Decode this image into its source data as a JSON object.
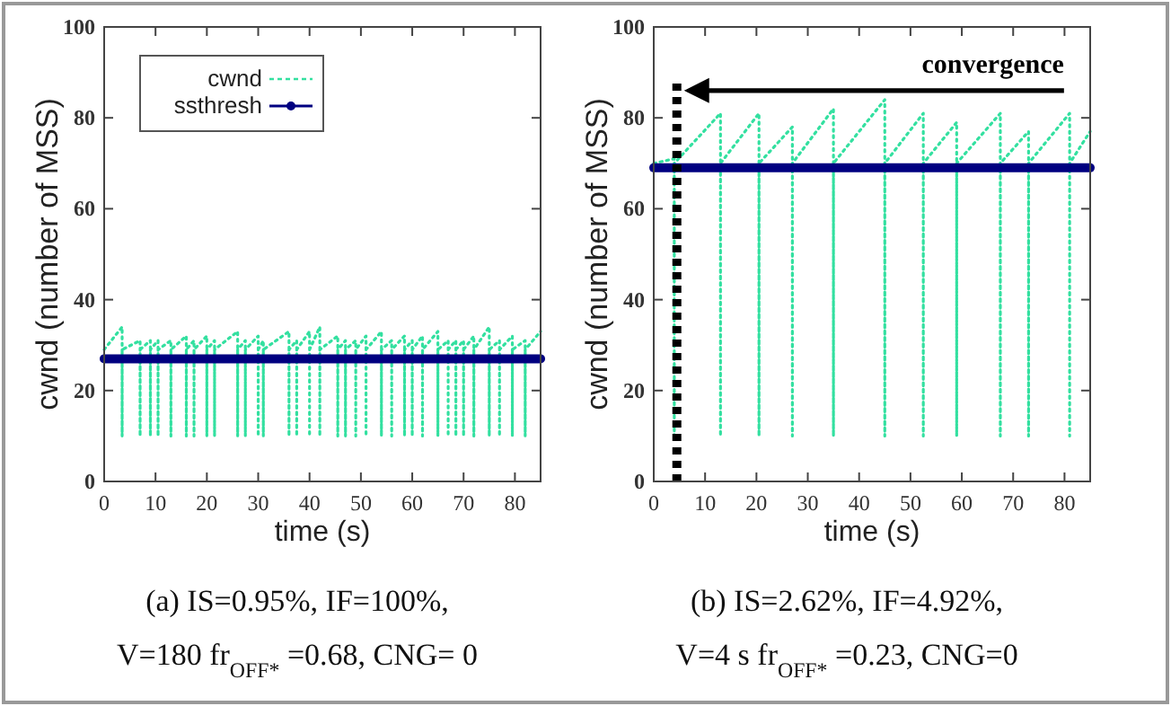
{
  "chart_data": [
    {
      "type": "line",
      "xlabel": "time (s)",
      "ylabel": "cwnd (number of MSS)",
      "xlim": [
        0,
        85
      ],
      "ylim": [
        0,
        100
      ],
      "xticks": [
        0,
        10,
        20,
        30,
        40,
        50,
        60,
        70,
        80
      ],
      "yticks": [
        0,
        20,
        40,
        60,
        80,
        100
      ],
      "grid": false,
      "legend": "top left",
      "annotations": [
        "(a) IS=0.95%, IF=100%,",
        "V=180 fr$_{OFF*}$=0.68, CNG= 0"
      ],
      "series": [
        {
          "name": "cwnd",
          "color": "#33e0a0",
          "line_style": "dotted",
          "x": [
            0,
            3.5,
            3.5,
            3.5,
            7,
            7,
            7,
            9,
            9,
            9,
            10.5,
            10.5,
            10.5,
            13,
            13,
            13,
            16,
            16,
            16,
            17.5,
            17.5,
            17.5,
            20,
            20,
            20,
            21.5,
            21.5,
            21.5,
            26,
            26,
            26,
            27.5,
            27.5,
            27.5,
            30,
            30,
            30,
            31,
            31,
            31,
            36,
            36,
            36,
            37.5,
            37.5,
            37.5,
            40,
            40,
            40,
            42,
            42,
            42,
            45.5,
            45.5,
            45.5,
            47,
            47,
            47,
            49,
            49,
            49,
            51,
            51,
            51,
            54,
            54,
            54,
            56,
            56,
            56,
            58.5,
            58.5,
            58.5,
            60,
            60,
            60,
            62,
            62,
            62,
            65,
            65,
            65,
            67,
            67,
            67,
            68.5,
            68.5,
            68.5,
            70,
            70,
            70,
            72,
            72,
            72,
            75,
            75,
            75,
            77,
            77,
            77,
            79.5,
            79.5,
            79.5,
            82,
            82,
            82,
            85
          ],
          "values": [
            29,
            34,
            10,
            29,
            31,
            10,
            29,
            31,
            10,
            29,
            31,
            10,
            29,
            31,
            10,
            29,
            32,
            10,
            29,
            31,
            10,
            29,
            32,
            10,
            29,
            31,
            10,
            29,
            33,
            10,
            29,
            31,
            10,
            29,
            32,
            10,
            29,
            31,
            10,
            29,
            33,
            10,
            29,
            31,
            10,
            29,
            33,
            10,
            29,
            34,
            10,
            29,
            32,
            10,
            29,
            31,
            10,
            29,
            31,
            10,
            29,
            32,
            10,
            29,
            33,
            10,
            29,
            31,
            10,
            29,
            32,
            10,
            29,
            31,
            10,
            29,
            32,
            10,
            29,
            33,
            10,
            29,
            31,
            10,
            29,
            31,
            10,
            29,
            31,
            10,
            29,
            32,
            10,
            29,
            34,
            10,
            29,
            31,
            10,
            29,
            32,
            10,
            29,
            31,
            10,
            29,
            33
          ]
        },
        {
          "name": "ssthresh",
          "color": "#000080",
          "line_style": "solid",
          "x": [
            0,
            85
          ],
          "values": [
            27,
            27
          ]
        }
      ]
    },
    {
      "type": "line",
      "xlabel": "time (s)",
      "ylabel": "cwnd (number of MSS)",
      "xlim": [
        0,
        85
      ],
      "ylim": [
        0,
        100
      ],
      "xticks": [
        0,
        10,
        20,
        30,
        40,
        50,
        60,
        70,
        80
      ],
      "yticks": [
        0,
        20,
        40,
        60,
        80,
        100
      ],
      "grid": false,
      "legend": false,
      "annotations": [
        "convergence",
        "(b) IS=2.62%, IF=4.92%,",
        "V=4 s fr$_{OFF*}$=0.23, CNG=0"
      ],
      "ref_lines": [
        {
          "axis": "x",
          "value": 4.5,
          "color": "#000000",
          "line_style": "dotted"
        }
      ],
      "series": [
        {
          "color": "#33e0a0",
          "line_style": "dotted",
          "x": [
            0,
            4,
            4,
            4,
            13,
            13,
            13,
            20.5,
            20.5,
            20.5,
            27,
            27,
            27,
            35,
            35,
            35,
            45,
            45,
            45,
            52.5,
            52.5,
            52.5,
            59,
            59,
            59,
            67.5,
            67.5,
            67.5,
            73,
            73,
            73,
            81,
            81,
            81,
            85
          ],
          "values": [
            70,
            71,
            10,
            70,
            81,
            10,
            70,
            81,
            10,
            70,
            78,
            10,
            70,
            82,
            10,
            70,
            84,
            10,
            70,
            81,
            10,
            70,
            79,
            10,
            70,
            81,
            10,
            70,
            77,
            10,
            70,
            81,
            10,
            70,
            77
          ]
        },
        {
          "color": "#000080",
          "line_style": "solid",
          "x": [
            0,
            85
          ],
          "values": [
            69,
            69
          ]
        }
      ]
    }
  ]
}
